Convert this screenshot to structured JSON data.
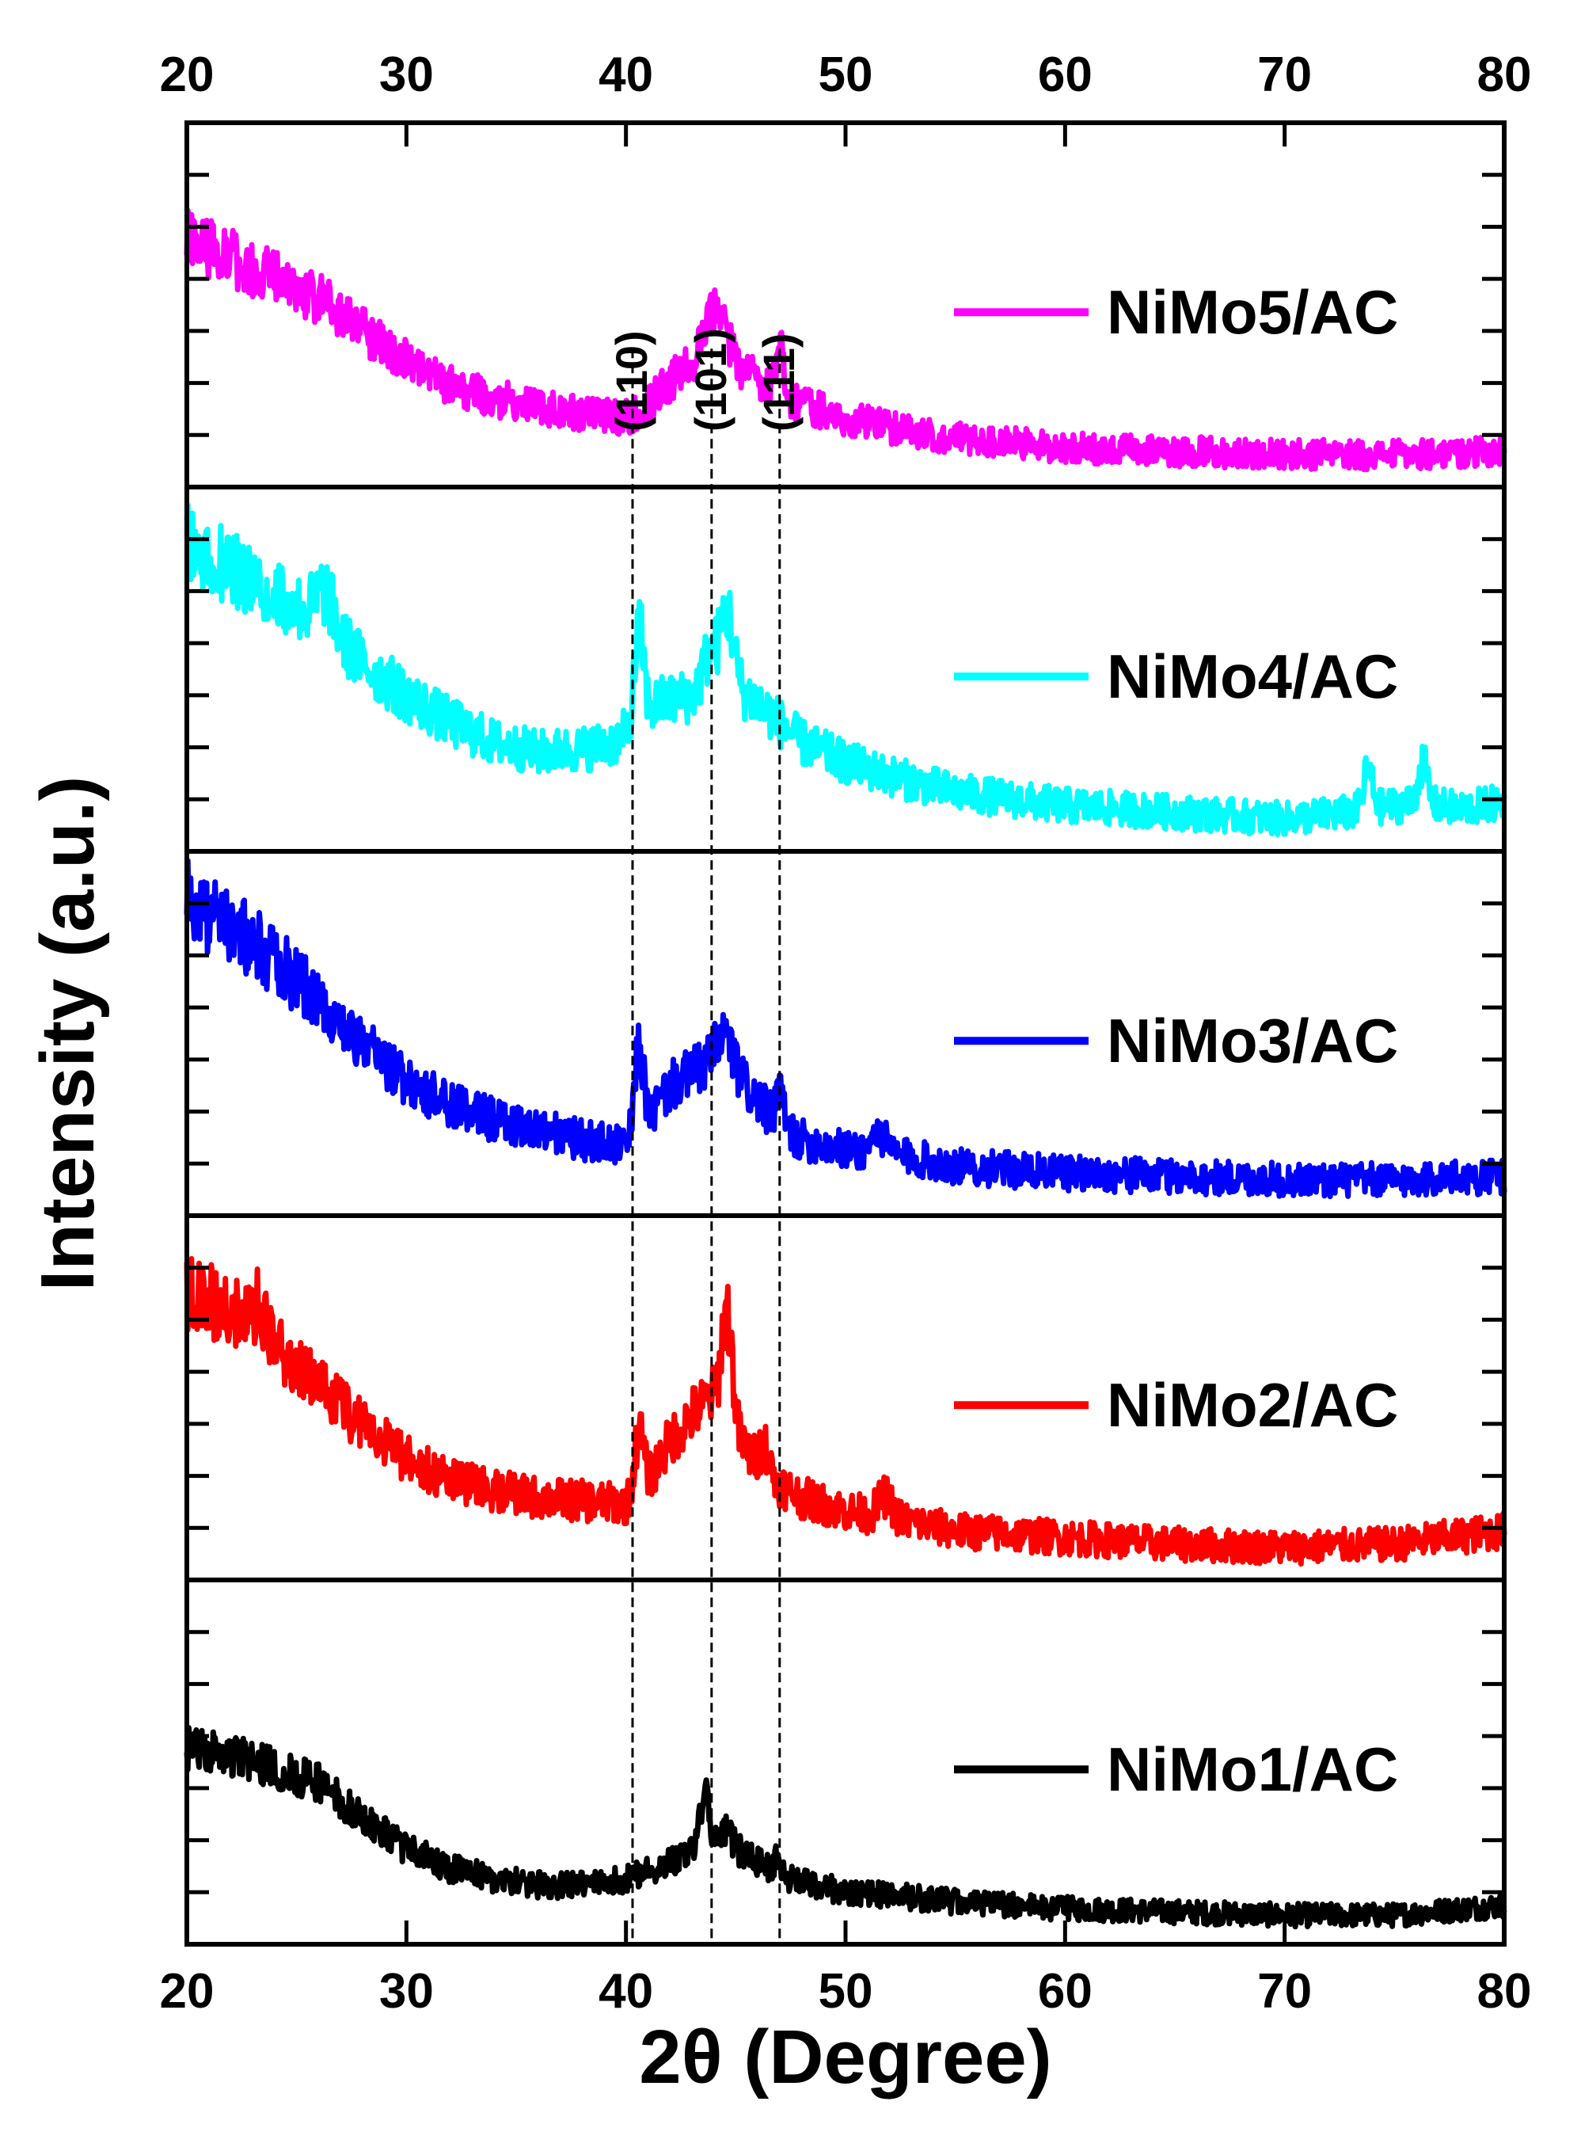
{
  "chart_data": {
    "type": "line",
    "title": "",
    "xlabel": "2θ (Degree)",
    "ylabel": "Intensity (a.u.)",
    "xlim": [
      20,
      80
    ],
    "xticks": [
      "20",
      "30",
      "40",
      "50",
      "60",
      "70",
      "80"
    ],
    "xtick_values": [
      20,
      30,
      40,
      50,
      60,
      70,
      80
    ],
    "grid": false,
    "stacked_panels": true,
    "legend_position": "right of each panel",
    "peak_markers": [
      {
        "label": "(110)",
        "x": 40.3
      },
      {
        "label": "(101)",
        "x": 43.9
      },
      {
        "label": "(111)",
        "x": 47.0
      }
    ],
    "series": [
      {
        "name": "NiMo5/AC",
        "color": "#ff00ff",
        "noise": 0.075,
        "seed": 5,
        "ylim": [
          0,
          1
        ],
        "x": [
          20,
          22,
          24,
          26,
          28,
          30,
          32,
          34,
          36,
          38,
          40,
          41,
          42,
          43,
          43.9,
          44.5,
          45.5,
          47,
          48,
          50,
          52,
          55,
          60,
          65,
          70,
          75,
          80
        ],
        "y": [
          0.7,
          0.64,
          0.58,
          0.52,
          0.42,
          0.33,
          0.26,
          0.22,
          0.19,
          0.17,
          0.16,
          0.2,
          0.27,
          0.32,
          0.37,
          0.32,
          0.3,
          0.24,
          0.2,
          0.16,
          0.13,
          0.1,
          0.07,
          0.06,
          0.05,
          0.05,
          0.06
        ],
        "peaks": [
          {
            "x": 43.9,
            "h": 0.1,
            "w": 0.35
          },
          {
            "x": 47.0,
            "h": 0.14,
            "w": 0.15
          },
          {
            "x": 44.5,
            "h": 0.08,
            "w": 0.3
          }
        ]
      },
      {
        "name": "NiMo4/AC",
        "color": "#00ffff",
        "noise": 0.085,
        "seed": 4,
        "ylim": [
          0,
          1
        ],
        "x": [
          20,
          22,
          24,
          26,
          28,
          30,
          32,
          34,
          36,
          38,
          39.5,
          40.5,
          41.5,
          43,
          43.9,
          44.8,
          46,
          47,
          48,
          50,
          52,
          55,
          60,
          65,
          70,
          73,
          76,
          78,
          80
        ],
        "y": [
          0.88,
          0.8,
          0.72,
          0.65,
          0.52,
          0.42,
          0.34,
          0.28,
          0.25,
          0.26,
          0.28,
          0.34,
          0.4,
          0.42,
          0.47,
          0.45,
          0.4,
          0.34,
          0.28,
          0.22,
          0.18,
          0.13,
          0.09,
          0.07,
          0.05,
          0.07,
          0.1,
          0.08,
          0.1
        ],
        "peaks": [
          {
            "x": 40.6,
            "h": 0.28,
            "w": 0.2
          },
          {
            "x": 44.6,
            "h": 0.22,
            "w": 0.3
          },
          {
            "x": 43.8,
            "h": 0.08,
            "w": 0.3
          },
          {
            "x": 26.3,
            "h": 0.1,
            "w": 0.4
          },
          {
            "x": 73.8,
            "h": 0.12,
            "w": 0.2
          },
          {
            "x": 76.3,
            "h": 0.12,
            "w": 0.2
          }
        ]
      },
      {
        "name": "NiMo3/AC",
        "color": "#0000ff",
        "noise": 0.085,
        "seed": 3,
        "ylim": [
          0,
          1
        ],
        "x": [
          20,
          22,
          24,
          26,
          28,
          30,
          32,
          34,
          36,
          38,
          40,
          41,
          42,
          43,
          43.9,
          45,
          46,
          47,
          48,
          50,
          52,
          55,
          60,
          65,
          70,
          75,
          80
        ],
        "y": [
          0.9,
          0.82,
          0.72,
          0.6,
          0.46,
          0.36,
          0.28,
          0.24,
          0.21,
          0.18,
          0.16,
          0.24,
          0.34,
          0.38,
          0.42,
          0.38,
          0.3,
          0.22,
          0.18,
          0.15,
          0.14,
          0.1,
          0.08,
          0.07,
          0.06,
          0.06,
          0.07
        ],
        "peaks": [
          {
            "x": 40.6,
            "h": 0.25,
            "w": 0.2
          },
          {
            "x": 44.5,
            "h": 0.1,
            "w": 0.3
          },
          {
            "x": 47.0,
            "h": 0.12,
            "w": 0.15
          },
          {
            "x": 51.5,
            "h": 0.06,
            "w": 0.3
          }
        ]
      },
      {
        "name": "NiMo2/AC",
        "color": "#ff0000",
        "noise": 0.085,
        "seed": 2,
        "ylim": [
          0,
          1
        ],
        "x": [
          20,
          22,
          24,
          26,
          28,
          30,
          32,
          34,
          36,
          38,
          40,
          41,
          42,
          43,
          43.9,
          45,
          46,
          47,
          48,
          50,
          52,
          55,
          60,
          65,
          70,
          75,
          80
        ],
        "y": [
          0.82,
          0.76,
          0.66,
          0.54,
          0.42,
          0.32,
          0.25,
          0.22,
          0.2,
          0.19,
          0.18,
          0.25,
          0.37,
          0.45,
          0.5,
          0.38,
          0.3,
          0.24,
          0.2,
          0.16,
          0.14,
          0.1,
          0.08,
          0.06,
          0.05,
          0.06,
          0.1
        ],
        "peaks": [
          {
            "x": 40.6,
            "h": 0.18,
            "w": 0.2
          },
          {
            "x": 44.6,
            "h": 0.34,
            "w": 0.25
          },
          {
            "x": 46.3,
            "h": 0.08,
            "w": 0.2
          },
          {
            "x": 51.8,
            "h": 0.06,
            "w": 0.3
          },
          {
            "x": 23.3,
            "h": 0.1,
            "w": 0.2
          }
        ]
      },
      {
        "name": "NiMo1/AC",
        "color": "#000000",
        "noise": 0.06,
        "seed": 1,
        "ylim": [
          0,
          1
        ],
        "x": [
          20,
          22,
          24,
          26,
          28,
          30,
          32,
          34,
          36,
          38,
          40,
          42,
          43.5,
          45,
          46,
          47,
          48,
          50,
          52,
          55,
          60,
          65,
          70,
          75,
          80
        ],
        "y": [
          0.54,
          0.52,
          0.48,
          0.44,
          0.33,
          0.24,
          0.18,
          0.15,
          0.13,
          0.13,
          0.15,
          0.2,
          0.26,
          0.24,
          0.2,
          0.16,
          0.14,
          0.11,
          0.1,
          0.08,
          0.06,
          0.05,
          0.04,
          0.04,
          0.07
        ],
        "peaks": [
          {
            "x": 43.6,
            "h": 0.14,
            "w": 0.2
          },
          {
            "x": 44.6,
            "h": 0.05,
            "w": 0.2
          },
          {
            "x": 46.9,
            "h": 0.04,
            "w": 0.2
          }
        ]
      }
    ]
  }
}
